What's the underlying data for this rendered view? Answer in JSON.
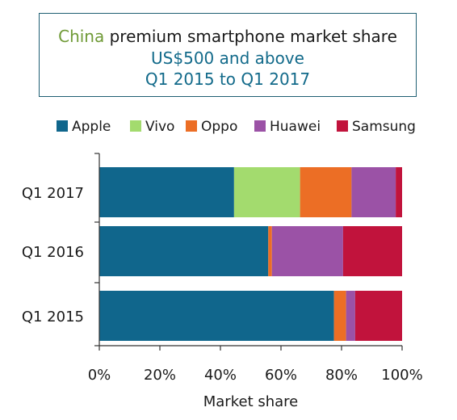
{
  "title": {
    "line1_highlight": "China",
    "line1_rest": " premium smartphone market share",
    "line2": "US$500 and above",
    "line3": "Q1 2015 to Q1 2017"
  },
  "colors": {
    "Apple": "#10668c",
    "Vivo": "#a3db6e",
    "Oppo": "#ec6e25",
    "Huawei": "#9b52a6",
    "Samsung": "#c1133c",
    "title_highlight": "#6f9a36",
    "title_accent": "#126a8a"
  },
  "chart_data": {
    "type": "bar",
    "orientation": "horizontal",
    "stacked": true,
    "categories": [
      "Q1 2017",
      "Q1 2016",
      "Q1 2015"
    ],
    "series": [
      {
        "name": "Apple",
        "values": [
          44.5,
          55.8,
          77.5
        ]
      },
      {
        "name": "Vivo",
        "values": [
          21.8,
          0.0,
          0.0
        ]
      },
      {
        "name": "Oppo",
        "values": [
          17.0,
          1.2,
          4.0
        ]
      },
      {
        "name": "Huawei",
        "values": [
          14.6,
          23.5,
          3.0
        ]
      },
      {
        "name": "Samsung",
        "values": [
          2.1,
          19.5,
          15.5
        ]
      }
    ],
    "xlabel": "Market share",
    "ylabel": "",
    "xlim": [
      0,
      100
    ],
    "xticks": [
      "0%",
      "20%",
      "40%",
      "60%",
      "80%",
      "100%"
    ],
    "legend_position": "top",
    "grid": false
  }
}
